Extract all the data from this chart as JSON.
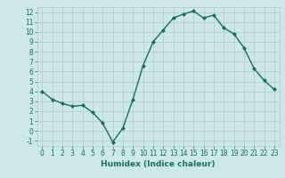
{
  "x": [
    0,
    1,
    2,
    3,
    4,
    5,
    6,
    7,
    8,
    9,
    10,
    11,
    12,
    13,
    14,
    15,
    16,
    17,
    18,
    19,
    20,
    21,
    22,
    23
  ],
  "y": [
    4.0,
    3.2,
    2.8,
    2.5,
    2.6,
    1.9,
    0.8,
    -1.1,
    0.3,
    3.2,
    6.6,
    9.0,
    10.2,
    11.4,
    11.8,
    12.1,
    11.4,
    11.7,
    10.4,
    9.8,
    8.4,
    6.3,
    5.1,
    4.2
  ],
  "line_color": "#1a6b5a",
  "marker": "D",
  "marker_size": 2,
  "line_width": 1.0,
  "xlabel": "Humidex (Indice chaleur)",
  "xlim": [
    -0.5,
    23.5
  ],
  "ylim": [
    -1.5,
    12.5
  ],
  "xtick_labels": [
    "0",
    "1",
    "2",
    "3",
    "4",
    "5",
    "6",
    "7",
    "8",
    "9",
    "10",
    "11",
    "12",
    "13",
    "14",
    "15",
    "16",
    "17",
    "18",
    "19",
    "20",
    "21",
    "22",
    "23"
  ],
  "yticks": [
    -1,
    0,
    1,
    2,
    3,
    4,
    5,
    6,
    7,
    8,
    9,
    10,
    11,
    12
  ],
  "background_color": "#cce8e8",
  "grid_color": "#b0c8c8",
  "tick_label_fontsize": 5.5,
  "xlabel_fontsize": 6.5,
  "label_color": "#1a6b5a"
}
